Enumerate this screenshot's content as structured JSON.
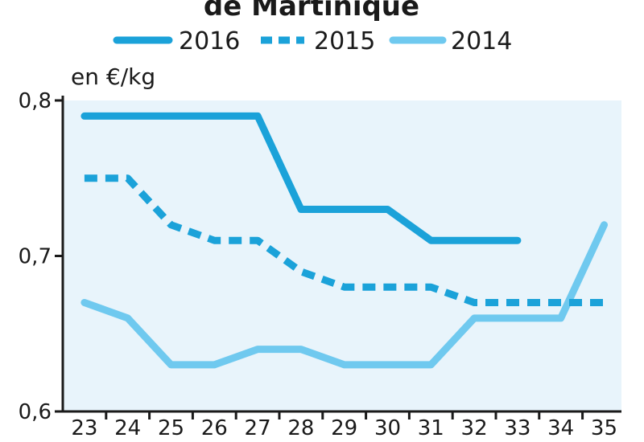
{
  "chart_data": {
    "type": "line",
    "title": "de Martinique",
    "ylabel": "en €/kg",
    "x": [
      23,
      24,
      25,
      26,
      27,
      28,
      29,
      30,
      31,
      32,
      33,
      34,
      35
    ],
    "xtick_labels": [
      "23",
      "24",
      "25",
      "26",
      "27",
      "28",
      "29",
      "30",
      "31",
      "32",
      "33",
      "34",
      "35"
    ],
    "yticks": [
      0.6,
      0.7,
      0.8
    ],
    "ytick_labels": [
      "0,6",
      "0,7",
      "0,8"
    ],
    "ylim": [
      0.6,
      0.8
    ],
    "xlim": [
      22.5,
      35.4
    ],
    "grid": false,
    "legend_position": "top",
    "background_color": "#e8f4fb",
    "series": [
      {
        "name": "2016",
        "color": "#1ba2d9",
        "style": "solid",
        "x": [
          23,
          24,
          25,
          26,
          27,
          28,
          29,
          30,
          31,
          32,
          33
        ],
        "values": [
          0.79,
          0.79,
          0.79,
          0.79,
          0.79,
          0.73,
          0.73,
          0.73,
          0.71,
          0.71,
          0.71
        ]
      },
      {
        "name": "2015",
        "color": "#1ba2d9",
        "style": "dashed",
        "x": [
          23,
          24,
          25,
          26,
          27,
          28,
          29,
          30,
          31,
          32,
          33,
          34,
          35
        ],
        "values": [
          0.75,
          0.75,
          0.72,
          0.71,
          0.71,
          0.69,
          0.68,
          0.68,
          0.68,
          0.67,
          0.67,
          0.67,
          0.67
        ]
      },
      {
        "name": "2014",
        "color": "#6fc9ef",
        "style": "solid",
        "x": [
          23,
          24,
          25,
          26,
          27,
          28,
          29,
          30,
          31,
          32,
          33,
          34,
          35
        ],
        "values": [
          0.67,
          0.66,
          0.63,
          0.63,
          0.64,
          0.64,
          0.63,
          0.63,
          0.63,
          0.66,
          0.66,
          0.66,
          0.72
        ]
      }
    ]
  }
}
